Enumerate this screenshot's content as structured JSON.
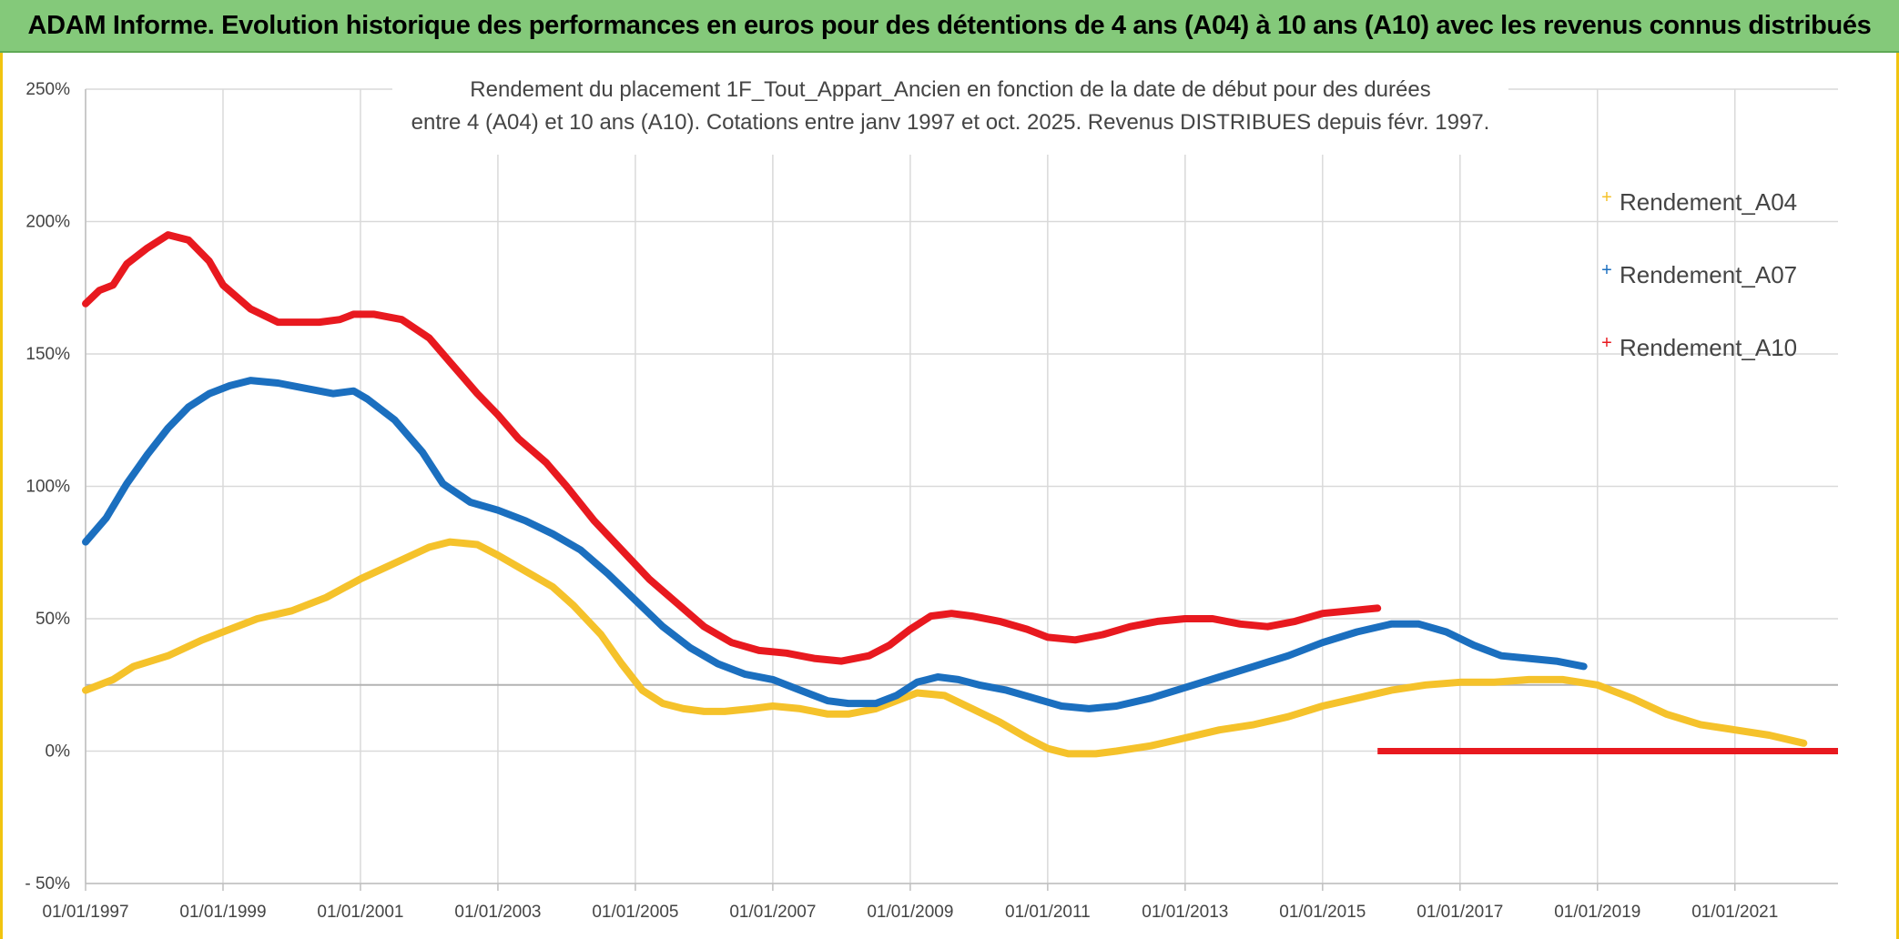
{
  "banner": {
    "title": "ADAM Informe. Evolution historique des performances en euros pour des détentions de 4 ans (A04) à 10 ans (A10) avec les revenus connus distribués"
  },
  "chart_data": {
    "type": "line",
    "title_lines": [
      "Rendement du placement 1F_Tout_Appart_Ancien en fonction de la date de début pour des durées",
      "entre 4 (A04) et 10 ans (A10). Cotations entre janv 1997 et oct. 2025. Revenus DISTRIBUES depuis févr. 1997."
    ],
    "xlabel": "",
    "ylabel": "",
    "xlim": [
      1997.0,
      2022.5
    ],
    "ylim": [
      -50,
      250
    ],
    "y_ticks": [
      {
        "v": 250,
        "label": "250%"
      },
      {
        "v": 200,
        "label": "200%"
      },
      {
        "v": 150,
        "label": "150%"
      },
      {
        "v": 100,
        "label": "100%"
      },
      {
        "v": 50,
        "label": "50%"
      },
      {
        "v": 0,
        "label": "0%"
      },
      {
        "v": -50,
        "label": "- 50%"
      }
    ],
    "x_ticks": [
      {
        "v": 1997,
        "label": "01/01/1997"
      },
      {
        "v": 1999,
        "label": "01/01/1999"
      },
      {
        "v": 2001,
        "label": "01/01/2001"
      },
      {
        "v": 2003,
        "label": "01/01/2003"
      },
      {
        "v": 2005,
        "label": "01/01/2005"
      },
      {
        "v": 2007,
        "label": "01/01/2007"
      },
      {
        "v": 2009,
        "label": "01/01/2009"
      },
      {
        "v": 2011,
        "label": "01/01/2011"
      },
      {
        "v": 2013,
        "label": "01/01/2013"
      },
      {
        "v": 2015,
        "label": "01/01/2015"
      },
      {
        "v": 2017,
        "label": "01/01/2017"
      },
      {
        "v": 2019,
        "label": "01/01/2019"
      },
      {
        "v": 2021,
        "label": "01/01/2021"
      }
    ],
    "reference_line": 25,
    "legend_position": "right",
    "series": [
      {
        "name": "Rendement_A04",
        "color": "#f5c22b",
        "x": [
          1997.0,
          1997.4,
          1997.7,
          1998.2,
          1998.7,
          1999.0,
          1999.5,
          2000.0,
          2000.5,
          2001.0,
          2001.5,
          2002.0,
          2002.3,
          2002.7,
          2003.0,
          2003.4,
          2003.8,
          2004.1,
          2004.5,
          2004.8,
          2005.1,
          2005.4,
          2005.7,
          2006.0,
          2006.3,
          2006.7,
          2007.0,
          2007.4,
          2007.8,
          2008.1,
          2008.5,
          2008.8,
          2009.1,
          2009.5,
          2009.9,
          2010.3,
          2010.7,
          2011.0,
          2011.3,
          2011.7,
          2012.0,
          2012.5,
          2013.0,
          2013.5,
          2014.0,
          2014.5,
          2015.0,
          2015.5,
          2016.0,
          2016.5,
          2017.0,
          2017.5,
          2018.0,
          2018.5,
          2019.0,
          2019.5,
          2020.0,
          2020.5,
          2021.0,
          2021.5,
          2022.0
        ],
        "values": [
          23,
          27,
          32,
          36,
          42,
          45,
          50,
          53,
          58,
          65,
          71,
          77,
          79,
          78,
          74,
          68,
          62,
          55,
          44,
          33,
          23,
          18,
          16,
          15,
          15,
          16,
          17,
          16,
          14,
          14,
          16,
          19,
          22,
          21,
          16,
          11,
          5,
          1,
          -1,
          -1,
          0,
          2,
          5,
          8,
          10,
          13,
          17,
          20,
          23,
          25,
          26,
          26,
          27,
          27,
          25,
          20,
          14,
          10,
          8,
          6,
          3
        ]
      },
      {
        "name": "Rendement_A07",
        "color": "#1b6fbf",
        "x": [
          1997.0,
          1997.3,
          1997.6,
          1997.9,
          1998.2,
          1998.5,
          1998.8,
          1999.1,
          1999.4,
          1999.8,
          2000.2,
          2000.6,
          2000.9,
          2001.1,
          2001.5,
          2001.9,
          2002.2,
          2002.6,
          2003.0,
          2003.4,
          2003.8,
          2004.2,
          2004.6,
          2005.0,
          2005.4,
          2005.8,
          2006.2,
          2006.6,
          2007.0,
          2007.4,
          2007.8,
          2008.1,
          2008.5,
          2008.8,
          2009.1,
          2009.4,
          2009.7,
          2010.0,
          2010.4,
          2010.8,
          2011.2,
          2011.6,
          2012.0,
          2012.5,
          2013.0,
          2013.5,
          2014.0,
          2014.5,
          2015.0,
          2015.5,
          2016.0,
          2016.4,
          2016.8,
          2017.2,
          2017.6,
          2018.0,
          2018.4,
          2018.8
        ],
        "values": [
          79,
          88,
          101,
          112,
          122,
          130,
          135,
          138,
          140,
          139,
          137,
          135,
          136,
          133,
          125,
          113,
          101,
          94,
          91,
          87,
          82,
          76,
          67,
          57,
          47,
          39,
          33,
          29,
          27,
          23,
          19,
          18,
          18,
          21,
          26,
          28,
          27,
          25,
          23,
          20,
          17,
          16,
          17,
          20,
          24,
          28,
          32,
          36,
          41,
          45,
          48,
          48,
          45,
          40,
          36,
          35,
          34,
          32
        ]
      },
      {
        "name": "Rendement_A10",
        "color": "#e8191f",
        "x": [
          1997.0,
          1997.2,
          1997.4,
          1997.6,
          1997.9,
          1998.2,
          1998.5,
          1998.8,
          1999.0,
          1999.4,
          1999.8,
          2000.1,
          2000.4,
          2000.7,
          2000.9,
          2001.2,
          2001.6,
          2002.0,
          2002.3,
          2002.7,
          2003.0,
          2003.3,
          2003.7,
          2004.0,
          2004.4,
          2004.8,
          2005.2,
          2005.6,
          2006.0,
          2006.4,
          2006.8,
          2007.2,
          2007.6,
          2008.0,
          2008.4,
          2008.7,
          2009.0,
          2009.3,
          2009.6,
          2009.9,
          2010.3,
          2010.7,
          2011.0,
          2011.4,
          2011.8,
          2012.2,
          2012.6,
          2013.0,
          2013.4,
          2013.8,
          2014.2,
          2014.6,
          2015.0,
          2015.4,
          2015.8
        ],
        "values": [
          169,
          174,
          176,
          184,
          190,
          195,
          193,
          185,
          176,
          167,
          162,
          162,
          162,
          163,
          165,
          165,
          163,
          156,
          147,
          135,
          127,
          118,
          109,
          100,
          87,
          76,
          65,
          56,
          47,
          41,
          38,
          37,
          35,
          34,
          36,
          40,
          46,
          51,
          52,
          51,
          49,
          46,
          43,
          42,
          44,
          47,
          49,
          50,
          50,
          48,
          47,
          49,
          52,
          53,
          54
        ],
        "flat_segment": {
          "x": [
            2015.8,
            2022.5
          ],
          "value": 0
        }
      }
    ]
  }
}
